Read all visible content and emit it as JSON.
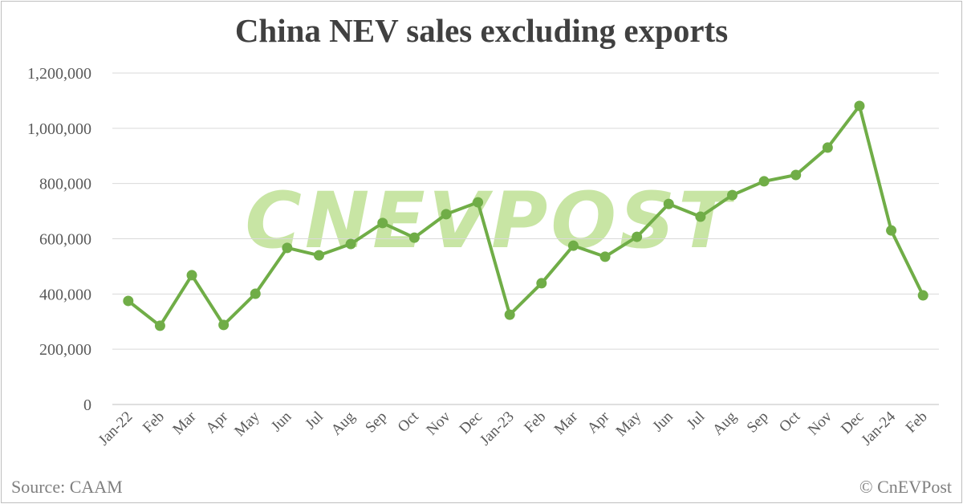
{
  "chart_data": {
    "type": "line",
    "title": "China NEV sales excluding exports",
    "xlabel": "",
    "ylabel": "",
    "categories": [
      "Jan-22",
      "Feb",
      "Mar",
      "Apr",
      "May",
      "Jun",
      "Jul",
      "Aug",
      "Sep",
      "Oct",
      "Nov",
      "Dec",
      "Jan-23",
      "Feb",
      "Mar",
      "Apr",
      "May",
      "Jun",
      "Jul",
      "Aug",
      "Sep",
      "Oct",
      "Nov",
      "Dec",
      "Jan-24",
      "Feb"
    ],
    "values": [
      375000,
      285000,
      468000,
      288000,
      401000,
      567000,
      540000,
      581000,
      657000,
      604000,
      689000,
      732000,
      325000,
      439000,
      575000,
      535000,
      607000,
      726000,
      680000,
      758000,
      808000,
      831000,
      930000,
      1081000,
      630000,
      395000
    ],
    "ylim": [
      0,
      1200000
    ],
    "yticks": [
      0,
      200000,
      400000,
      600000,
      800000,
      1000000,
      1200000
    ],
    "ytick_labels": [
      "0",
      "200,000",
      "400,000",
      "600,000",
      "800,000",
      "1,000,000",
      "1,200,000"
    ],
    "grid": true,
    "legend": "none",
    "line_color": "#70ad47"
  },
  "footer": {
    "source": "Source: CAAM",
    "copyright": "© CnEVPost"
  },
  "watermark": "CNEVPOST"
}
